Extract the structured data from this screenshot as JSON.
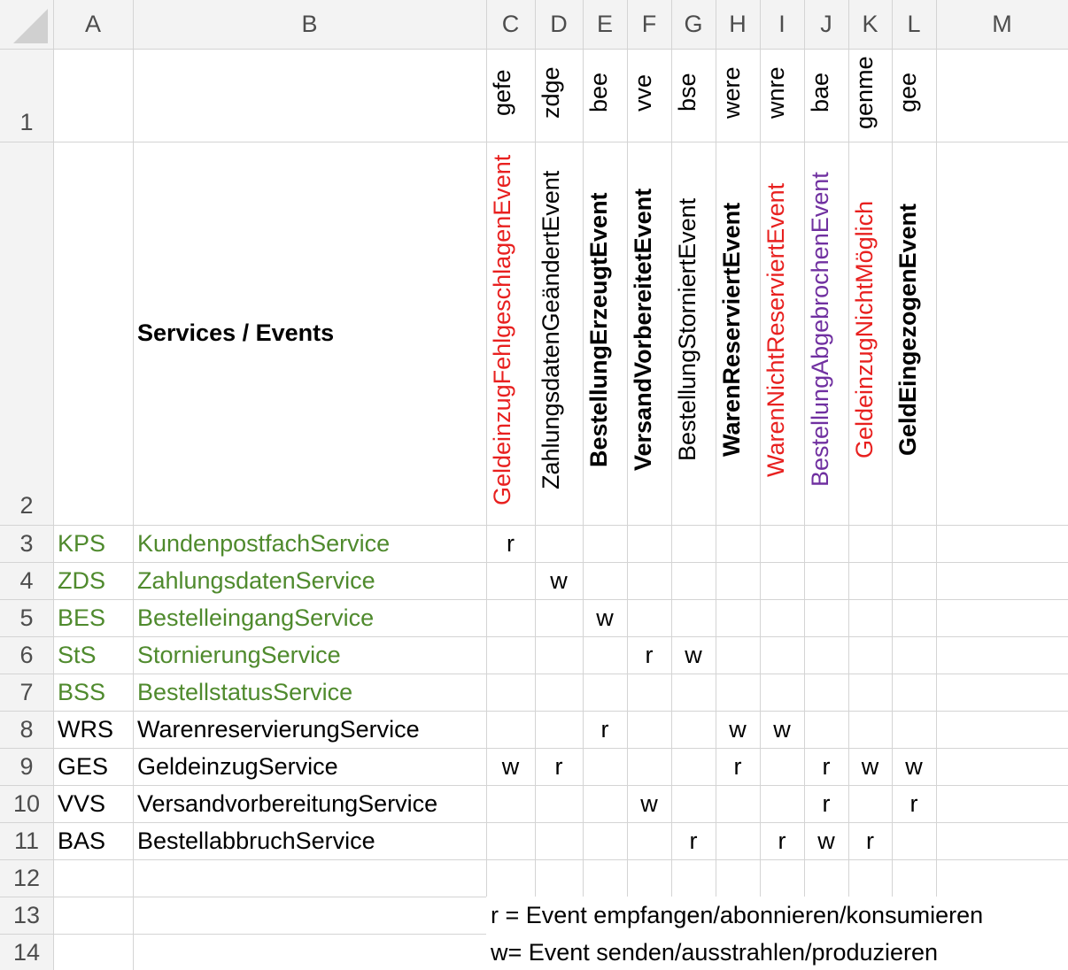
{
  "columns": [
    "A",
    "B",
    "C",
    "D",
    "E",
    "F",
    "G",
    "H",
    "I",
    "J",
    "K",
    "L",
    "M"
  ],
  "row_numbers": [
    "1",
    "2",
    "3",
    "4",
    "5",
    "6",
    "7",
    "8",
    "9",
    "10",
    "11",
    "12",
    "13",
    "14"
  ],
  "header_title": "Services / Events",
  "event_abbr": [
    "gefe",
    "zdge",
    "bee",
    "vve",
    "bse",
    "were",
    "wnre",
    "bae",
    "genme",
    "gee"
  ],
  "events": [
    {
      "name": "GeldeinzugFehlgeschlagenEvent",
      "color": "red",
      "bold": false
    },
    {
      "name": "ZahlungsdatenGeändertEvent",
      "color": "black",
      "bold": false
    },
    {
      "name": "BestellungErzeugtEvent",
      "color": "black",
      "bold": true
    },
    {
      "name": "VersandVorbereitetEvent",
      "color": "black",
      "bold": true
    },
    {
      "name": "BestellungStorniertEvent",
      "color": "black",
      "bold": false
    },
    {
      "name": "WarenReserviertEvent",
      "color": "black",
      "bold": true
    },
    {
      "name": "WarenNichtReserviertEvent",
      "color": "red",
      "bold": false
    },
    {
      "name": "BestellungAbgebrochenEvent",
      "color": "purple",
      "bold": false
    },
    {
      "name": "GeldeinzugNichtMöglich",
      "color": "red",
      "bold": false
    },
    {
      "name": "GeldEingezogenEvent",
      "color": "black",
      "bold": true
    }
  ],
  "services": [
    {
      "abbr": "KPS",
      "name": "KundenpostfachService",
      "green": true,
      "marks": [
        "r",
        "",
        "",
        "",
        "",
        "",
        "",
        "",
        "",
        ""
      ]
    },
    {
      "abbr": "ZDS",
      "name": "ZahlungsdatenService",
      "green": true,
      "marks": [
        "",
        "w",
        "",
        "",
        "",
        "",
        "",
        "",
        "",
        ""
      ]
    },
    {
      "abbr": "BES",
      "name": "BestelleingangService",
      "green": true,
      "marks": [
        "",
        "",
        "w",
        "",
        "",
        "",
        "",
        "",
        "",
        ""
      ]
    },
    {
      "abbr": "StS",
      "name": "StornierungService",
      "green": true,
      "marks": [
        "",
        "",
        "",
        "r",
        "w",
        "",
        "",
        "",
        "",
        ""
      ]
    },
    {
      "abbr": "BSS",
      "name": "BestellstatusService",
      "green": true,
      "marks": [
        "",
        "",
        "",
        "",
        "",
        "",
        "",
        "",
        "",
        ""
      ]
    },
    {
      "abbr": "WRS",
      "name": "WarenreservierungService",
      "green": false,
      "marks": [
        "",
        "",
        "r",
        "",
        "",
        "w",
        "w",
        "",
        "",
        ""
      ]
    },
    {
      "abbr": "GES",
      "name": "GeldeinzugService",
      "green": false,
      "marks": [
        "w",
        "r",
        "",
        "",
        "",
        "r",
        "",
        "r",
        "w",
        "w"
      ]
    },
    {
      "abbr": "VVS",
      "name": "VersandvorbereitungService",
      "green": false,
      "marks": [
        "",
        "",
        "",
        "w",
        "",
        "",
        "",
        "r",
        "",
        "r"
      ]
    },
    {
      "abbr": "BAS",
      "name": "BestellabbruchService",
      "green": false,
      "marks": [
        "",
        "",
        "",
        "",
        "r",
        "",
        "r",
        "w",
        "r",
        ""
      ]
    }
  ],
  "legend": [
    "r = Event empfangen/abonnieren/konsumieren",
    "w= Event senden/ausstrahlen/produzieren"
  ]
}
